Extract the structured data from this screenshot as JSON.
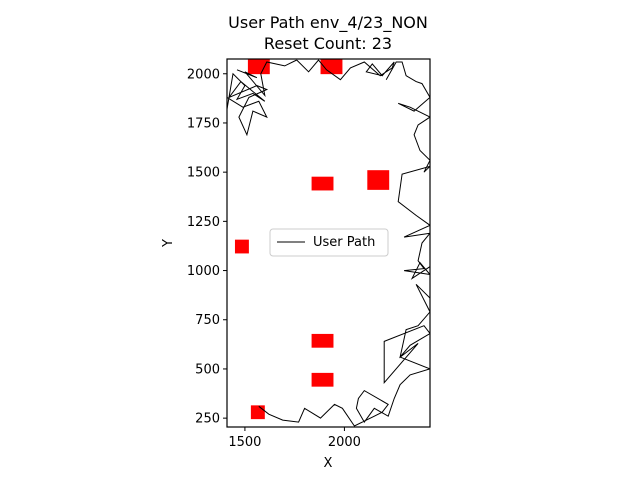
{
  "chart_data": {
    "type": "line",
    "title": "User Path env_4/23_NON",
    "subtitle": "Reset Count: 23",
    "xlabel": "X",
    "ylabel": "Y",
    "xlim": [
      1410,
      2430
    ],
    "ylim": [
      205,
      2075
    ],
    "xticks": [
      1500,
      2000
    ],
    "yticks": [
      250,
      500,
      750,
      1000,
      1250,
      1500,
      1750,
      2000
    ],
    "grid": false,
    "legend": {
      "placement": "center",
      "entries": [
        "User Path"
      ]
    },
    "colors": {
      "path": "#000000",
      "obstacle": "#ff0000"
    },
    "obstacles": [
      {
        "cx": 1570,
        "cy": 2038,
        "w": 110,
        "h": 80
      },
      {
        "cx": 1935,
        "cy": 2038,
        "w": 110,
        "h": 80
      },
      {
        "cx": 1890,
        "cy": 1442,
        "w": 110,
        "h": 70
      },
      {
        "cx": 2170,
        "cy": 1460,
        "w": 110,
        "h": 100
      },
      {
        "cx": 1485,
        "cy": 1122,
        "w": 70,
        "h": 70
      },
      {
        "cx": 1890,
        "cy": 643,
        "w": 110,
        "h": 70
      },
      {
        "cx": 1890,
        "cy": 445,
        "w": 110,
        "h": 70
      },
      {
        "cx": 1565,
        "cy": 280,
        "w": 70,
        "h": 70
      }
    ],
    "series": [
      {
        "segments": [
          [
            [
              1410,
              1820
            ],
            [
              1440,
              2000
            ],
            [
              1500,
              1940
            ],
            [
              1460,
              1870
            ],
            [
              1540,
              1900
            ],
            [
              1600,
              1860
            ],
            [
              1480,
              1960
            ],
            [
              1420,
              1880
            ],
            [
              1560,
              1940
            ],
            [
              1610,
              1920
            ],
            [
              1520,
              1880
            ],
            [
              1470,
              1780
            ],
            [
              1510,
              1690
            ],
            [
              1540,
              1810
            ],
            [
              1610,
              1780
            ],
            [
              1570,
              1860
            ],
            [
              1490,
              1830
            ],
            [
              1410,
              1880
            ]
          ],
          [
            [
              1460,
              2020
            ],
            [
              1560,
              1980
            ],
            [
              1500,
              2010
            ],
            [
              1600,
              1890
            ],
            [
              1580,
              2000
            ],
            [
              1610,
              2060
            ],
            [
              1700,
              2040
            ],
            [
              1760,
              2070
            ]
          ],
          [
            [
              1760,
              2070
            ],
            [
              1820,
              2010
            ],
            [
              1870,
              2070
            ],
            [
              1910,
              2020
            ],
            [
              1980,
              1970
            ],
            [
              2030,
              2030
            ],
            [
              2100,
              2060
            ],
            [
              2180,
              1990
            ],
            [
              2240,
              2030
            ],
            [
              2250,
              2060
            ],
            [
              2190,
              1990
            ],
            [
              2140,
              2050
            ],
            [
              2110,
              2010
            ],
            [
              2190,
              1990
            ]
          ],
          [
            [
              2210,
              1970
            ],
            [
              2260,
              2060
            ],
            [
              2290,
              2060
            ],
            [
              2310,
              1990
            ],
            [
              2360,
              1960
            ],
            [
              2390,
              1950
            ],
            [
              2430,
              1880
            ],
            [
              2350,
              1810
            ],
            [
              2270,
              1850
            ],
            [
              2330,
              1830
            ],
            [
              2430,
              1780
            ],
            [
              2370,
              1740
            ],
            [
              2350,
              1690
            ],
            [
              2380,
              1610
            ],
            [
              2430,
              1560
            ],
            [
              2400,
              1500
            ],
            [
              2430,
              1530
            ],
            [
              2290,
              1490
            ],
            [
              2270,
              1350
            ],
            [
              2360,
              1280
            ],
            [
              2430,
              1230
            ],
            [
              2300,
              1170
            ],
            [
              2430,
              1190
            ],
            [
              2390,
              1140
            ],
            [
              2370,
              1050
            ],
            [
              2400,
              1010
            ],
            [
              2300,
              1000
            ],
            [
              2430,
              980
            ],
            [
              2380,
              1040
            ],
            [
              2340,
              960
            ],
            [
              2430,
              1020
            ],
            [
              2430,
              860
            ],
            [
              2360,
              930
            ],
            [
              2430,
              790
            ],
            [
              2370,
              720
            ],
            [
              2310,
              700
            ],
            [
              2280,
              560
            ],
            [
              2370,
              630
            ],
            [
              2200,
              430
            ],
            [
              2200,
              640
            ],
            [
              2400,
              720
            ],
            [
              2430,
              680
            ],
            [
              2330,
              620
            ],
            [
              2280,
              560
            ],
            [
              2430,
              500
            ],
            [
              2330,
              470
            ],
            [
              2280,
              420
            ],
            [
              2250,
              350
            ],
            [
              2220,
              260
            ],
            [
              2150,
              300
            ],
            [
              2100,
              230
            ],
            [
              2060,
              300
            ],
            [
              2070,
              350
            ],
            [
              2100,
              390
            ],
            [
              2220,
              320
            ],
            [
              2190,
              280
            ],
            [
              2150,
              260
            ],
            [
              2050,
              210
            ],
            [
              1990,
              300
            ],
            [
              1950,
              320
            ],
            [
              1880,
              250
            ],
            [
              1800,
              300
            ],
            [
              1770,
              230
            ],
            [
              1690,
              240
            ],
            [
              1620,
              270
            ],
            [
              1570,
              310
            ]
          ]
        ]
      }
    ]
  }
}
